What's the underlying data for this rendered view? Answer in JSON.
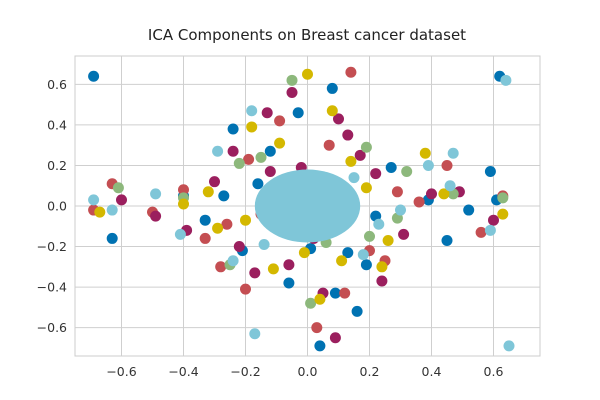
{
  "chart_data": {
    "type": "scatter",
    "title": "ICA Components on Breast cancer dataset",
    "xlabel": "",
    "ylabel": "",
    "xlim": [
      -0.75,
      0.75
    ],
    "ylim": [
      -0.74,
      0.74
    ],
    "x_ticks": [
      -0.6,
      -0.4,
      -0.2,
      0.0,
      0.2,
      0.4,
      0.6
    ],
    "x_tick_labels": [
      "−0.6",
      "−0.4",
      "−0.2",
      "0.0",
      "0.2",
      "0.4",
      "0.6"
    ],
    "y_ticks": [
      -0.6,
      -0.4,
      -0.2,
      0.0,
      0.2,
      0.4,
      0.6
    ],
    "y_tick_labels": [
      "−0.6",
      "−0.4",
      "−0.2",
      "0.0",
      "0.2",
      "0.4",
      "0.6"
    ],
    "grid": true,
    "legend": "none",
    "series_colors": [
      "#0072B2",
      "#C44E52",
      "#9B1F5E",
      "#8DB87C",
      "#D4B800",
      "#7FC6D8"
    ],
    "series": [
      {
        "color": "#0072B2",
        "x": [
          -0.69,
          0.62,
          -0.63,
          -0.21,
          -0.06,
          0.08,
          0.19,
          0.27,
          0.45,
          0.59,
          -0.4,
          -0.12,
          0.04,
          0.16,
          0.39,
          -0.27,
          -0.24,
          0.09,
          -0.03,
          0.01,
          -0.16,
          0.22,
          -0.33,
          0.61,
          0.52,
          -0.02,
          0.13
        ],
        "y": [
          0.64,
          0.64,
          -0.16,
          -0.22,
          -0.38,
          0.58,
          -0.29,
          0.19,
          -0.17,
          0.17,
          0.05,
          0.27,
          -0.69,
          -0.52,
          0.03,
          0.05,
          0.38,
          -0.43,
          0.46,
          -0.21,
          0.11,
          -0.05,
          -0.07,
          0.03,
          -0.02,
          0.12,
          -0.23
        ]
      },
      {
        "color": "#C44E52",
        "x": [
          -0.69,
          -0.63,
          -0.5,
          -0.4,
          -0.33,
          -0.28,
          -0.19,
          -0.09,
          0.03,
          0.14,
          0.25,
          0.36,
          0.45,
          0.56,
          0.63,
          -0.15,
          0.12,
          -0.07,
          0.07,
          0.2,
          -0.2,
          0.0,
          0.29,
          -0.26
        ],
        "y": [
          -0.02,
          0.11,
          -0.03,
          0.08,
          -0.16,
          -0.3,
          0.23,
          0.42,
          -0.6,
          0.66,
          -0.27,
          0.02,
          0.2,
          -0.13,
          0.05,
          -0.04,
          -0.43,
          0.12,
          0.3,
          -0.22,
          -0.41,
          0.0,
          0.07,
          -0.09
        ]
      },
      {
        "color": "#9B1F5E",
        "x": [
          -0.6,
          -0.49,
          -0.39,
          -0.3,
          -0.22,
          -0.13,
          -0.06,
          0.05,
          0.13,
          0.22,
          0.31,
          0.4,
          0.49,
          0.6,
          -0.17,
          0.17,
          -0.05,
          0.09,
          -0.24,
          0.24,
          -0.12,
          0.1,
          0.02,
          -0.02
        ],
        "y": [
          0.03,
          -0.05,
          -0.12,
          0.12,
          -0.2,
          0.46,
          -0.29,
          -0.43,
          0.35,
          0.16,
          -0.14,
          0.06,
          0.07,
          -0.07,
          -0.33,
          0.25,
          0.56,
          -0.65,
          0.27,
          -0.37,
          0.17,
          0.43,
          -0.16,
          0.19
        ]
      },
      {
        "color": "#8DB87C",
        "x": [
          -0.61,
          -0.4,
          -0.25,
          -0.15,
          0.2,
          0.32,
          0.47,
          0.63,
          0.06,
          -0.05,
          0.19,
          -0.22,
          0.29,
          0.01
        ],
        "y": [
          0.09,
          0.04,
          -0.29,
          0.24,
          -0.15,
          0.17,
          0.06,
          0.04,
          -0.18,
          0.62,
          0.29,
          0.21,
          -0.06,
          -0.48
        ]
      },
      {
        "color": "#D4B800",
        "x": [
          -0.67,
          -0.4,
          -0.32,
          -0.2,
          -0.11,
          0.0,
          0.04,
          0.14,
          0.24,
          0.38,
          0.44,
          0.63,
          -0.09,
          0.11,
          -0.29,
          0.19,
          -0.18,
          0.08,
          0.26,
          -0.01
        ],
        "y": [
          -0.03,
          0.01,
          0.07,
          -0.07,
          -0.31,
          0.65,
          -0.46,
          0.22,
          -0.3,
          0.26,
          0.06,
          -0.04,
          0.31,
          -0.27,
          -0.11,
          0.09,
          0.39,
          0.47,
          -0.17,
          -0.23
        ]
      },
      {
        "color": "#7FC6D8",
        "x": [
          -0.69,
          -0.63,
          -0.49,
          -0.41,
          -0.29,
          -0.17,
          0.64,
          0.65,
          0.47,
          0.59,
          0.39,
          -0.01,
          0.05,
          -0.03,
          0.07,
          -0.09,
          0.11,
          -0.06,
          0.02,
          0.15,
          0.18,
          0.23,
          -0.24,
          -0.18,
          0.3,
          0.46,
          0.0,
          0.04,
          -0.14
        ],
        "y": [
          0.03,
          -0.02,
          0.06,
          -0.14,
          0.27,
          -0.63,
          0.62,
          -0.69,
          0.26,
          -0.12,
          0.2,
          0.0,
          0.02,
          -0.03,
          0.05,
          0.06,
          -0.04,
          -0.07,
          0.08,
          0.14,
          -0.24,
          -0.09,
          -0.27,
          0.47,
          -0.02,
          0.1,
          -0.14,
          0.13,
          -0.19
        ]
      }
    ],
    "core_cluster": {
      "color": "#7FC6D8",
      "center": [
        0.0,
        0.0
      ],
      "rx": 0.17,
      "ry": 0.18
    }
  }
}
